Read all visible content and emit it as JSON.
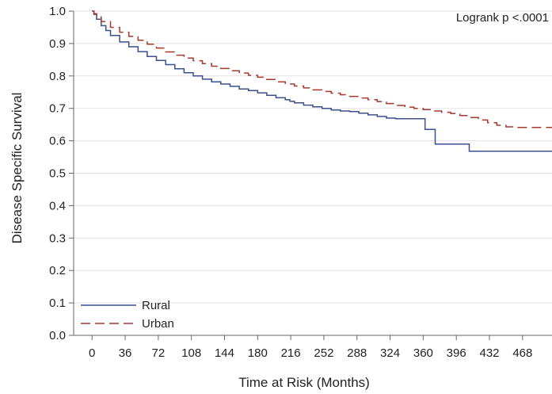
{
  "chart_data": {
    "type": "line",
    "step": true,
    "ylabel": "Disease Specific Survival",
    "xlabel": "Time at Risk (Months)",
    "annotation": "Logrank p <.0001",
    "xlim": [
      -20,
      500
    ],
    "ylim": [
      0,
      1.0
    ],
    "xticks": [
      0,
      36,
      72,
      108,
      144,
      180,
      216,
      252,
      288,
      324,
      360,
      396,
      432,
      468
    ],
    "yticks": [
      "0.0",
      "0.1",
      "0.2",
      "0.3",
      "0.4",
      "0.5",
      "0.6",
      "0.7",
      "0.8",
      "0.9",
      "1.0"
    ],
    "grid": "horizontal",
    "legend_position": "bottom-left",
    "colors": {
      "Rural": "#3b4f8f",
      "Urban": "#a33a2e"
    },
    "series": [
      {
        "name": "Rural",
        "style": "solid",
        "x": [
          0,
          2,
          5,
          10,
          15,
          20,
          30,
          40,
          50,
          60,
          70,
          80,
          90,
          100,
          110,
          120,
          130,
          140,
          150,
          160,
          170,
          180,
          190,
          200,
          210,
          215,
          220,
          230,
          240,
          250,
          260,
          270,
          280,
          290,
          300,
          310,
          320,
          330,
          340,
          350,
          360,
          362,
          372,
          373,
          392,
          393,
          410,
          500
        ],
        "y": [
          1.0,
          0.99,
          0.975,
          0.955,
          0.94,
          0.925,
          0.905,
          0.89,
          0.875,
          0.86,
          0.848,
          0.835,
          0.822,
          0.81,
          0.8,
          0.79,
          0.782,
          0.775,
          0.768,
          0.76,
          0.755,
          0.748,
          0.74,
          0.733,
          0.727,
          0.722,
          0.717,
          0.71,
          0.705,
          0.7,
          0.695,
          0.692,
          0.69,
          0.685,
          0.68,
          0.675,
          0.67,
          0.668,
          0.668,
          0.668,
          0.668,
          0.635,
          0.635,
          0.59,
          0.59,
          0.59,
          0.568,
          0.568
        ]
      },
      {
        "name": "Urban",
        "style": "dashed",
        "x": [
          0,
          2,
          5,
          10,
          20,
          30,
          40,
          50,
          60,
          70,
          80,
          90,
          100,
          110,
          120,
          130,
          140,
          150,
          160,
          170,
          180,
          190,
          200,
          210,
          220,
          230,
          240,
          250,
          260,
          270,
          280,
          290,
          300,
          310,
          320,
          330,
          340,
          350,
          360,
          370,
          380,
          390,
          400,
          410,
          420,
          430,
          440,
          450,
          460,
          470,
          480,
          500
        ],
        "y": [
          1.0,
          0.992,
          0.982,
          0.968,
          0.95,
          0.935,
          0.922,
          0.91,
          0.898,
          0.886,
          0.874,
          0.864,
          0.855,
          0.847,
          0.838,
          0.83,
          0.823,
          0.816,
          0.809,
          0.802,
          0.796,
          0.789,
          0.782,
          0.775,
          0.769,
          0.763,
          0.757,
          0.752,
          0.747,
          0.742,
          0.737,
          0.732,
          0.727,
          0.721,
          0.715,
          0.709,
          0.704,
          0.7,
          0.696,
          0.692,
          0.688,
          0.684,
          0.678,
          0.672,
          0.664,
          0.656,
          0.648,
          0.643,
          0.641,
          0.641,
          0.641,
          0.641
        ]
      }
    ]
  }
}
